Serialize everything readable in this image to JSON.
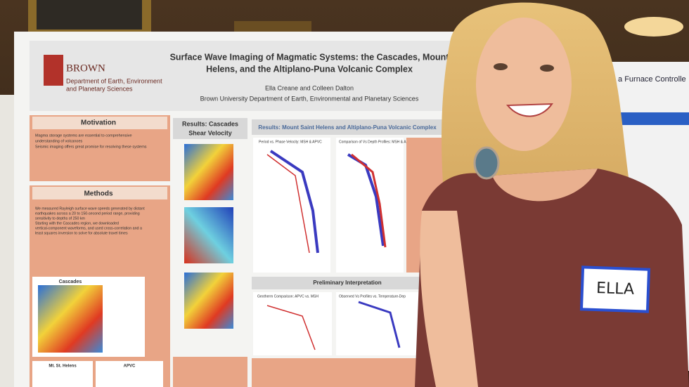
{
  "poster": {
    "title_lines": [
      "Surface Wave Imaging of Magmatic Systems: the Cascades, Mount",
      "Helens, and the Altiplano-Puna Volcanic Complex"
    ],
    "logo": "BROWN",
    "department_lines": [
      "Department of Earth, Environment",
      "and Planetary Sciences"
    ],
    "authors": "Ella Creane and Colleen Dalton",
    "affiliation": "Brown University Department of Earth, Environmental and Planetary Sciences",
    "sections": {
      "motivation": "Motivation",
      "methods": "Methods",
      "results_cascades": [
        "Results: Cascades",
        "Shear Velocity"
      ],
      "results_msh_apvc": "Results: Mount Saint Helens and Altiplano-Puna Volcanic Complex",
      "interpretation": "Preliminary Interpretation"
    },
    "map_labels": [
      "Cascades",
      "Mt. St. Helens",
      "APVC"
    ],
    "plot_titles": [
      "Period vs. Phase Velocity: MSH & APVC",
      "Comparison of Vs Depth Profiles: MSH & APVC",
      "Geotherm Comparison: APVC vs. MSH",
      "Observed Vs Profiles vs. Temperature-Dep"
    ],
    "methods_bullets": [
      "We measured Rayleigh surface wave speeds generated by distant",
      "earthquakes across a 20 to 150-second period range, providing",
      "sensitivity to depths of 250 km",
      "Starting with the Cascades region, we downloaded",
      "vertical-component waveforms, and used cross-correlation and a",
      "least squares inversion to solve for absolute travel times"
    ],
    "motivation_bullets": [
      "Magma storage systems are essential to comprehensive",
      "understanding of volcanoes",
      "Seismic imaging offers great promise for resolving these systems"
    ]
  },
  "name_tag": "ELLA",
  "side_poster": "eating a Furnace Controlle"
}
